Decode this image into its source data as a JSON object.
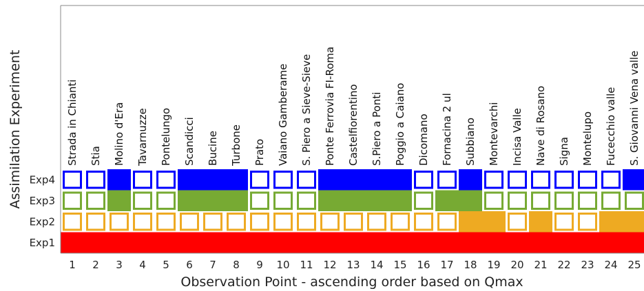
{
  "chart_data": {
    "type": "heatmap",
    "xlabel": "Observation Point - ascending order based on Qmax",
    "ylabel": "Assimilation Experiment",
    "x": [
      1,
      2,
      3,
      4,
      5,
      6,
      7,
      8,
      9,
      10,
      11,
      12,
      13,
      14,
      15,
      16,
      17,
      18,
      19,
      20,
      21,
      22,
      23,
      24,
      25
    ],
    "stations": [
      "Strada in Chianti",
      "Stia",
      "Molino d'Era",
      "Tavarnuzze",
      "Pontelungo",
      "Scandicci",
      "Bucine",
      "Turbone",
      "Prato",
      "Vaiano Gamberame",
      "S. Piero a Sieve-Sieve",
      "Ponte Ferrovia FI-Roma",
      "Castelfiorentino",
      "S.Piero a Ponti",
      "Poggio a Caiano",
      "Dicomano",
      "Fornacina 2 ul",
      "Subbiano",
      "Montevarchi",
      "Incisa Valle",
      "Nave di Rosano",
      "Signa",
      "Montelupo",
      "Fucecchio valle",
      "S. Giovanni Vena valle"
    ],
    "experiments": [
      "Exp4",
      "Exp3",
      "Exp2",
      "Exp1"
    ],
    "colors": {
      "Exp4": "#0000ff",
      "Exp3": "#77aa33",
      "Exp2": "#eeaa22",
      "Exp1": "#ff0000"
    },
    "filled": {
      "Exp4": [
        0,
        0,
        1,
        0,
        0,
        1,
        1,
        1,
        0,
        0,
        0,
        1,
        1,
        1,
        1,
        0,
        0,
        1,
        0,
        0,
        0,
        0,
        0,
        0,
        1
      ],
      "Exp3": [
        0,
        0,
        1,
        0,
        0,
        1,
        1,
        1,
        0,
        0,
        0,
        1,
        1,
        1,
        1,
        0,
        1,
        1,
        0,
        0,
        0,
        0,
        0,
        0,
        0
      ],
      "Exp2": [
        0,
        0,
        0,
        0,
        0,
        0,
        0,
        0,
        0,
        0,
        0,
        0,
        0,
        0,
        0,
        0,
        0,
        1,
        1,
        0,
        1,
        0,
        0,
        1,
        1
      ],
      "Exp1": [
        1,
        1,
        1,
        1,
        1,
        1,
        1,
        1,
        1,
        1,
        1,
        1,
        1,
        1,
        1,
        1,
        1,
        1,
        1,
        1,
        1,
        1,
        1,
        1,
        1
      ]
    }
  }
}
